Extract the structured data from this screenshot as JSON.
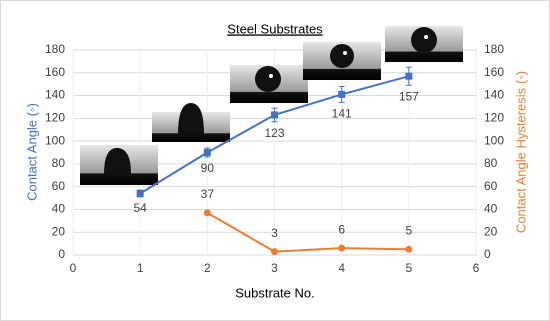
{
  "chart_data": {
    "type": "line",
    "title": "Steel Substrates",
    "x_label": "Substrate No.",
    "y_label": "Contact Angle (◦)",
    "y2_label": "Contact Angle Hysteresis (◦)",
    "xlim": [
      0,
      6
    ],
    "xticks": [
      0,
      1,
      2,
      3,
      4,
      5,
      6
    ],
    "ylim": [
      0,
      180
    ],
    "yticks": [
      0,
      20,
      40,
      60,
      80,
      100,
      120,
      140,
      160,
      180
    ],
    "y2lim": [
      0,
      180
    ],
    "y2ticks": [
      0,
      20,
      40,
      60,
      80,
      100,
      120,
      140,
      160,
      180
    ],
    "grid": true,
    "series": [
      {
        "color": "#4472c4",
        "x": [
          1,
          2,
          3,
          4,
          5
        ],
        "values": [
          54,
          90,
          123,
          141,
          157
        ],
        "errors": [
          3,
          4,
          6,
          7,
          8
        ]
      },
      {
        "color": "#ed7d31",
        "axis": "y2",
        "x": [
          2,
          3,
          4,
          5
        ],
        "values": [
          37,
          3,
          6,
          5
        ]
      }
    ]
  }
}
